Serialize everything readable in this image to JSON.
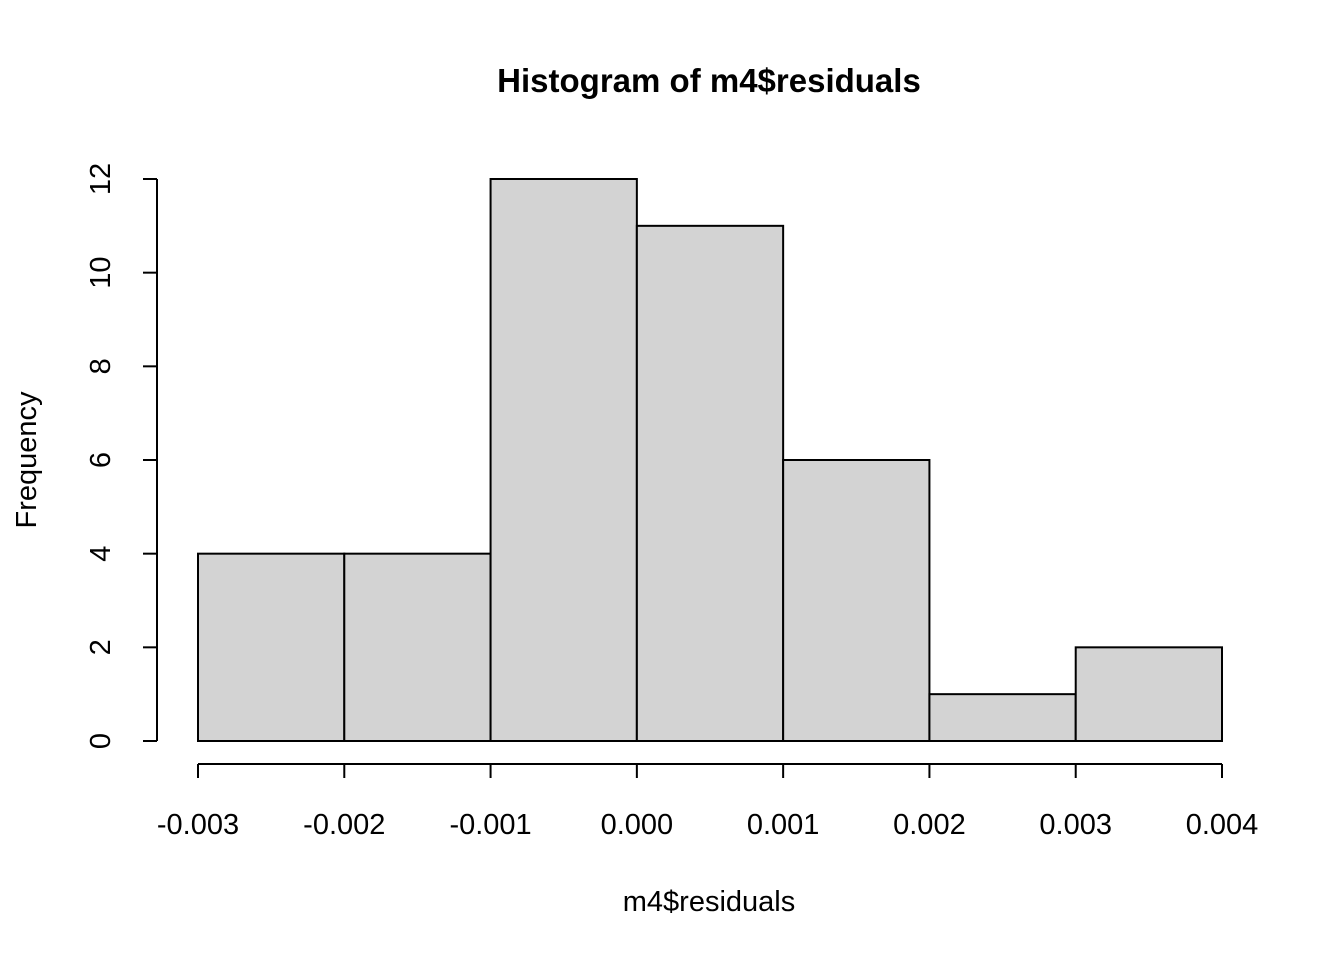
{
  "chart_data": {
    "type": "bar",
    "title": "Histogram of m4$residuals",
    "xlabel": "m4$residuals",
    "ylabel": "Frequency",
    "bins": [
      {
        "start": -0.003,
        "end": -0.002,
        "count": 4
      },
      {
        "start": -0.002,
        "end": -0.001,
        "count": 4
      },
      {
        "start": -0.001,
        "end": 0.0,
        "count": 12
      },
      {
        "start": 0.0,
        "end": 0.001,
        "count": 11
      },
      {
        "start": 0.001,
        "end": 0.002,
        "count": 6
      },
      {
        "start": 0.002,
        "end": 0.003,
        "count": 1
      },
      {
        "start": 0.003,
        "end": 0.004,
        "count": 2
      }
    ],
    "xlim": [
      -0.003,
      0.004
    ],
    "ylim": [
      0,
      12
    ],
    "x_ticks": [
      {
        "value": -0.003,
        "label": "-0.003"
      },
      {
        "value": -0.002,
        "label": "-0.002"
      },
      {
        "value": -0.001,
        "label": "-0.001"
      },
      {
        "value": 0.0,
        "label": "0.000"
      },
      {
        "value": 0.001,
        "label": "0.001"
      },
      {
        "value": 0.002,
        "label": "0.002"
      },
      {
        "value": 0.003,
        "label": "0.003"
      },
      {
        "value": 0.004,
        "label": "0.004"
      }
    ],
    "y_ticks": [
      {
        "value": 0,
        "label": "0"
      },
      {
        "value": 2,
        "label": "2"
      },
      {
        "value": 4,
        "label": "4"
      },
      {
        "value": 6,
        "label": "6"
      },
      {
        "value": 8,
        "label": "8"
      },
      {
        "value": 10,
        "label": "10"
      },
      {
        "value": 12,
        "label": "12"
      }
    ],
    "bar_color": "#d3d3d3",
    "border_color": "#000000",
    "grid": false
  }
}
